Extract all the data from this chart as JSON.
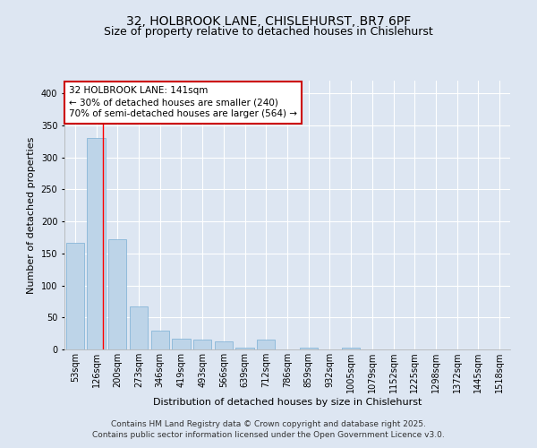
{
  "title_line1": "32, HOLBROOK LANE, CHISLEHURST, BR7 6PF",
  "title_line2": "Size of property relative to detached houses in Chislehurst",
  "xlabel": "Distribution of detached houses by size in Chislehurst",
  "ylabel": "Number of detached properties",
  "bar_labels": [
    "53sqm",
    "126sqm",
    "200sqm",
    "273sqm",
    "346sqm",
    "419sqm",
    "493sqm",
    "566sqm",
    "639sqm",
    "712sqm",
    "786sqm",
    "859sqm",
    "932sqm",
    "1005sqm",
    "1079sqm",
    "1152sqm",
    "1225sqm",
    "1298sqm",
    "1372sqm",
    "1445sqm",
    "1518sqm"
  ],
  "bar_values": [
    167,
    330,
    172,
    67,
    30,
    17,
    16,
    13,
    3,
    15,
    0,
    3,
    0,
    3,
    0,
    0,
    0,
    0,
    0,
    0,
    0
  ],
  "bar_color": "#bdd4e8",
  "bar_edge_color": "#7aafd4",
  "bg_color": "#dde6f2",
  "grid_color": "#ffffff",
  "annotation_text": "32 HOLBROOK LANE: 141sqm\n← 30% of detached houses are smaller (240)\n70% of semi-detached houses are larger (564) →",
  "annotation_box_color": "#ffffff",
  "annotation_box_edge": "#cc0000",
  "property_line_x": 1.3,
  "ylim": [
    0,
    420
  ],
  "yticks": [
    0,
    50,
    100,
    150,
    200,
    250,
    300,
    350,
    400
  ],
  "footer_line1": "Contains HM Land Registry data © Crown copyright and database right 2025.",
  "footer_line2": "Contains public sector information licensed under the Open Government Licence v3.0.",
  "title_fontsize": 10,
  "subtitle_fontsize": 9,
  "axis_label_fontsize": 8,
  "tick_fontsize": 7,
  "annotation_fontsize": 7.5,
  "footer_fontsize": 6.5
}
